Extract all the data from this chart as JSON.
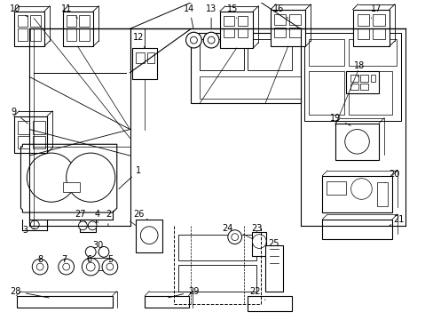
{
  "bg": "#ffffff",
  "lc": "#000000",
  "fs": 7.0,
  "figsize": [
    4.89,
    3.6
  ],
  "dpi": 100
}
